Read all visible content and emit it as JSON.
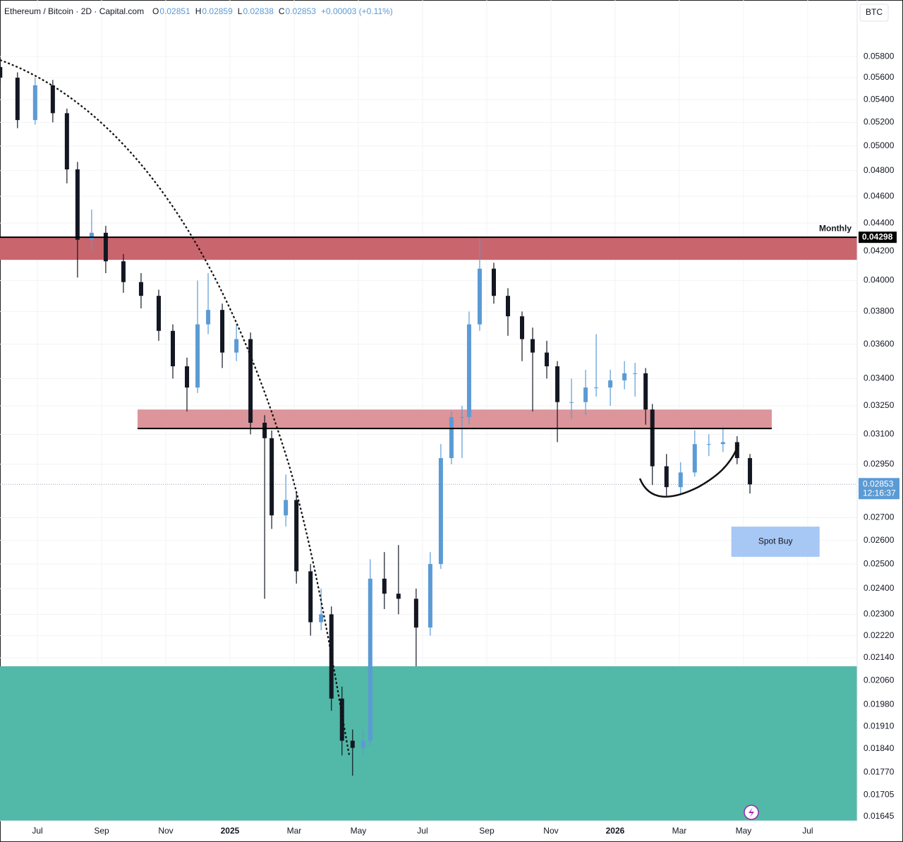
{
  "chart_data": {
    "type": "candlestick",
    "symbol": "Ethereum / Bitcoin · 2D · Capital.com",
    "ohlc_header": [
      {
        "label": "O",
        "value": 0.02851
      },
      {
        "label": "H",
        "value": 0.02859
      },
      {
        "label": "L",
        "value": 0.02838
      },
      {
        "label": "C",
        "value": 0.02853
      }
    ],
    "change": "+0.00003 (+0.11%)",
    "currency": "BTC",
    "log_scale": true,
    "grid": true,
    "up_color": "#5b9bd5",
    "down_color": "#131722",
    "ylim": [
      0.01633,
      0.0637
    ],
    "xlim": [
      -1.165,
      25.54
    ],
    "yticks": [
      {
        "value": 0.058,
        "label": "0.05800"
      },
      {
        "value": 0.056,
        "label": "0.05600"
      },
      {
        "value": 0.054,
        "label": "0.05400"
      },
      {
        "value": 0.052,
        "label": "0.05200"
      },
      {
        "value": 0.05,
        "label": "0.05000"
      },
      {
        "value": 0.048,
        "label": "0.04800"
      },
      {
        "value": 0.046,
        "label": "0.04600"
      },
      {
        "value": 0.044,
        "label": "0.04400"
      },
      {
        "value": 0.042,
        "label": "0.04200"
      },
      {
        "value": 0.04,
        "label": "0.04000"
      },
      {
        "value": 0.038,
        "label": "0.03800"
      },
      {
        "value": 0.036,
        "label": "0.03600"
      },
      {
        "value": 0.034,
        "label": "0.03400"
      },
      {
        "value": 0.0325,
        "label": "0.03250"
      },
      {
        "value": 0.031,
        "label": "0.03100"
      },
      {
        "value": 0.0295,
        "label": "0.02950"
      },
      {
        "value": 0.027,
        "label": "0.02700"
      },
      {
        "value": 0.026,
        "label": "0.02600"
      },
      {
        "value": 0.025,
        "label": "0.02500"
      },
      {
        "value": 0.024,
        "label": "0.02400"
      },
      {
        "value": 0.023,
        "label": "0.02300"
      },
      {
        "value": 0.0222,
        "label": "0.02220"
      },
      {
        "value": 0.0214,
        "label": "0.02140"
      },
      {
        "value": 0.0206,
        "label": "0.02060"
      },
      {
        "value": 0.0198,
        "label": "0.01980"
      },
      {
        "value": 0.0191,
        "label": "0.01910"
      },
      {
        "value": 0.0184,
        "label": "0.01840"
      },
      {
        "value": 0.0177,
        "label": "0.01770"
      },
      {
        "value": 0.01705,
        "label": "0.01705"
      },
      {
        "value": 0.01645,
        "label": "0.01645"
      }
    ],
    "xticks": [
      {
        "value": 0,
        "label": "Jul"
      },
      {
        "value": 2,
        "label": "Sep"
      },
      {
        "value": 4,
        "label": "Nov"
      },
      {
        "value": 6,
        "label": "2025"
      },
      {
        "value": 8,
        "label": "Mar"
      },
      {
        "value": 10,
        "label": "May"
      },
      {
        "value": 12,
        "label": "Jul"
      },
      {
        "value": 14,
        "label": "Sep"
      },
      {
        "value": 16,
        "label": "Nov"
      },
      {
        "value": 18,
        "label": "2026"
      },
      {
        "value": 20,
        "label": "Mar"
      },
      {
        "value": 22,
        "label": "May"
      },
      {
        "value": 24,
        "label": "Jul"
      }
    ],
    "x": [
      -1.16,
      -0.62,
      -0.07,
      0.48,
      0.92,
      1.25,
      1.69,
      2.13,
      2.68,
      3.23,
      3.78,
      4.22,
      4.66,
      4.99,
      5.32,
      5.76,
      6.2,
      6.64,
      7.08,
      7.3,
      7.74,
      8.07,
      8.51,
      8.84,
      9.16,
      9.49,
      9.82,
      10.15,
      10.37,
      10.81,
      11.25,
      11.8,
      12.24,
      12.57,
      12.9,
      13.23,
      13.45,
      13.78,
      14.22,
      14.66,
      15.1,
      15.43,
      15.87,
      16.2,
      16.64,
      17.08,
      17.41,
      17.85,
      18.29,
      18.62,
      18.95,
      19.16,
      19.6,
      20.04,
      20.48,
      20.92,
      21.36,
      21.8,
      22.2
    ],
    "open": [
      0.057,
      0.056,
      0.0522,
      0.0553,
      0.0528,
      0.0481,
      0.0428,
      0.0433,
      0.0413,
      0.0399,
      0.039,
      0.0368,
      0.0347,
      0.0335,
      0.0372,
      0.0381,
      0.0355,
      0.0363,
      0.0316,
      0.0308,
      0.0271,
      0.0278,
      0.0247,
      0.0227,
      0.023,
      0.02,
      0.01865,
      0.01843,
      0.01865,
      0.0244,
      0.0238,
      0.0236,
      0.0225,
      0.025,
      0.0298,
      0.0319,
      0.0319,
      0.0372,
      0.0408,
      0.039,
      0.0377,
      0.0363,
      0.0355,
      0.0347,
      0.0327,
      0.0327,
      0.0335,
      0.0335,
      0.0339,
      0.0343,
      0.0343,
      0.0323,
      0.0294,
      0.0284,
      0.0291,
      0.0305,
      0.0305,
      0.0306,
      0.0298
    ],
    "high": [
      0.0575,
      0.0565,
      0.056,
      0.0558,
      0.0532,
      0.0487,
      0.045,
      0.0438,
      0.0418,
      0.0405,
      0.0394,
      0.0372,
      0.0352,
      0.04,
      0.0405,
      0.0385,
      0.0372,
      0.0367,
      0.032,
      0.0312,
      0.029,
      0.0282,
      0.025,
      0.024,
      0.0233,
      0.0204,
      0.019,
      0.019,
      0.0252,
      0.0255,
      0.0258,
      0.024,
      0.0255,
      0.0305,
      0.0322,
      0.0325,
      0.038,
      0.0429,
      0.0412,
      0.0395,
      0.038,
      0.037,
      0.0362,
      0.035,
      0.034,
      0.0345,
      0.0366,
      0.0345,
      0.035,
      0.0349,
      0.0346,
      0.0326,
      0.03,
      0.0296,
      0.0312,
      0.031,
      0.0314,
      0.0309,
      0.03
    ],
    "low": [
      0.0555,
      0.0515,
      0.0518,
      0.052,
      0.047,
      0.0402,
      0.042,
      0.0405,
      0.0392,
      0.0382,
      0.0362,
      0.034,
      0.0322,
      0.0332,
      0.0366,
      0.0346,
      0.035,
      0.031,
      0.0236,
      0.0265,
      0.0266,
      0.0242,
      0.0222,
      0.0224,
      0.0196,
      0.0182,
      0.0176,
      0.0182,
      0.0185,
      0.0232,
      0.023,
      0.0211,
      0.0222,
      0.0248,
      0.0295,
      0.0298,
      0.0315,
      0.0368,
      0.0385,
      0.0365,
      0.035,
      0.0322,
      0.034,
      0.0306,
      0.0318,
      0.032,
      0.033,
      0.0325,
      0.0334,
      0.033,
      0.0315,
      0.0285,
      0.028,
      0.0281,
      0.0289,
      0.0299,
      0.0301,
      0.0295,
      0.0281
    ],
    "close": [
      0.056,
      0.0522,
      0.0553,
      0.0528,
      0.0481,
      0.0428,
      0.0433,
      0.0413,
      0.0399,
      0.039,
      0.0368,
      0.0347,
      0.0335,
      0.0372,
      0.0381,
      0.0355,
      0.0363,
      0.0316,
      0.0308,
      0.0271,
      0.0278,
      0.0247,
      0.0227,
      0.023,
      0.02,
      0.01865,
      0.01843,
      0.01865,
      0.0244,
      0.0238,
      0.0236,
      0.0225,
      0.025,
      0.0298,
      0.0319,
      0.0319,
      0.0372,
      0.0408,
      0.039,
      0.0377,
      0.0363,
      0.0355,
      0.0347,
      0.0327,
      0.0327,
      0.0335,
      0.0335,
      0.0339,
      0.0343,
      0.0343,
      0.0323,
      0.0294,
      0.0284,
      0.0291,
      0.0305,
      0.0305,
      0.0306,
      0.0298,
      0.02853
    ],
    "zones": [
      {
        "range": [
          0.0414,
          0.04298
        ],
        "x": [
          -1.165,
          25.54
        ],
        "color": "#c9656d"
      },
      {
        "range": [
          0.0313,
          0.0323
        ],
        "x": [
          3.12,
          22.88
        ],
        "color": "#dc959a"
      },
      {
        "range": [
          0.01633,
          0.0211
        ],
        "x": [
          -1.165,
          25.54
        ],
        "color": "#52b8a7"
      }
    ],
    "levels": [
      {
        "label": "Monthly",
        "value": 0.04298,
        "x": [
          -1.165,
          25.54
        ]
      },
      {
        "value": 0.0313,
        "x": [
          3.12,
          22.88
        ]
      }
    ],
    "spot_buy": {
      "text": "Spot Buy",
      "range": [
        0.0253,
        0.0266
      ],
      "x": [
        21.62,
        24.37
      ]
    },
    "last_price": {
      "value": 0.02853,
      "countdown": "12:16:37"
    }
  }
}
